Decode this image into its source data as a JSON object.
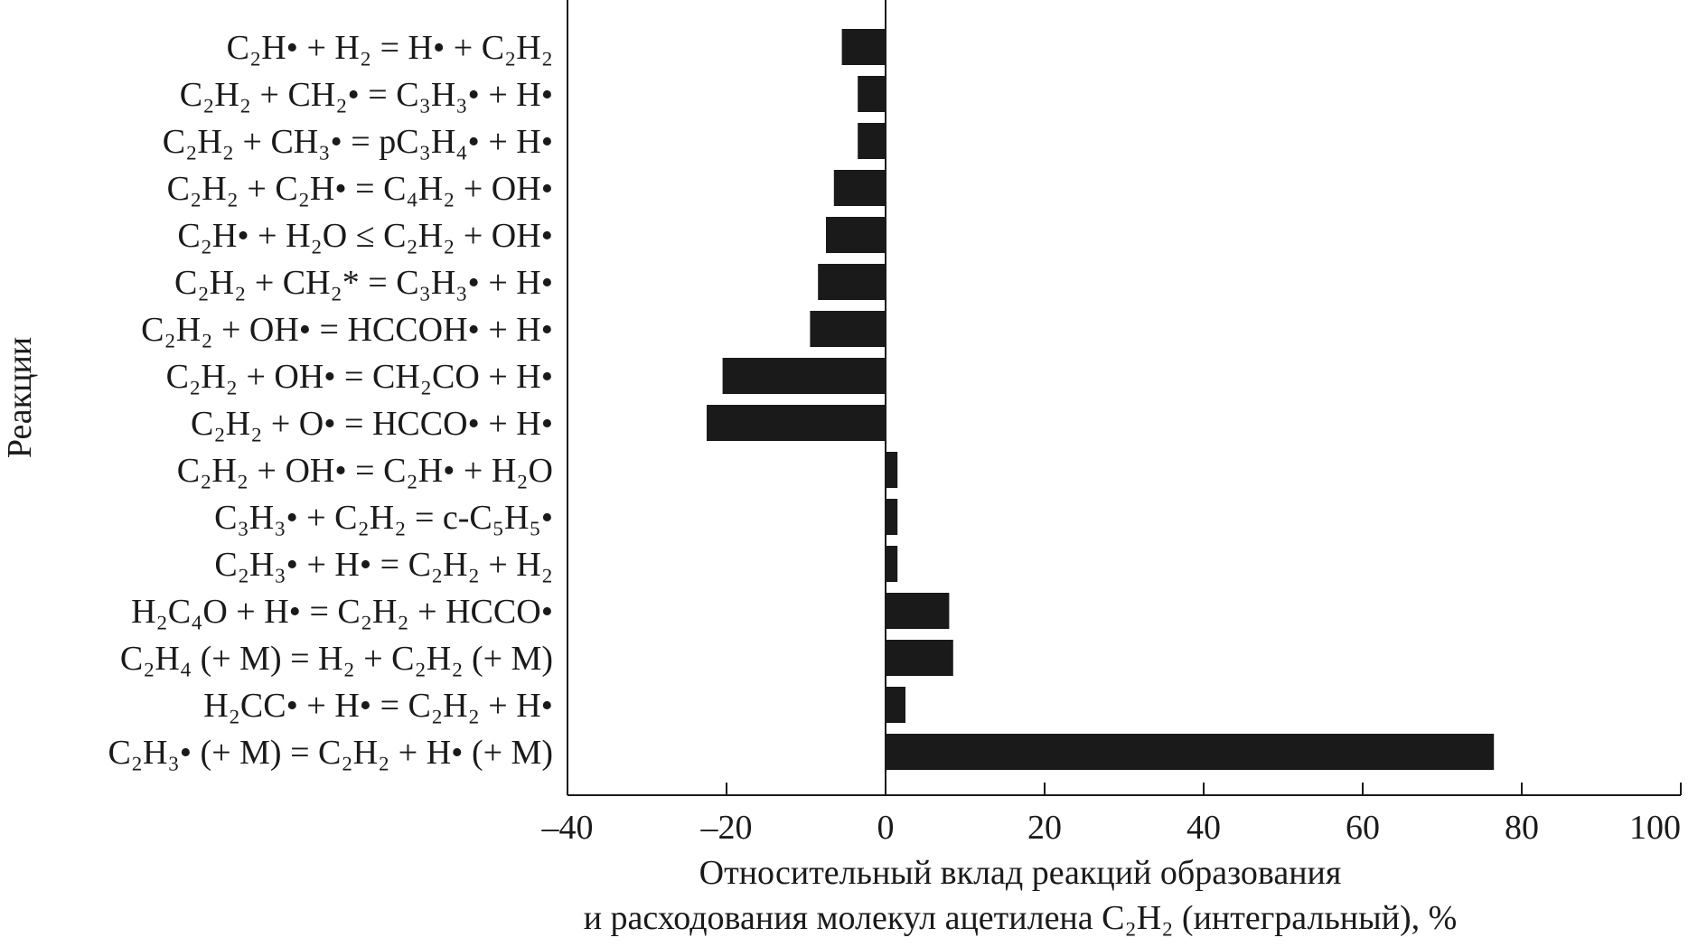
{
  "chart_data": {
    "type": "bar",
    "orientation": "horizontal",
    "ylabel": "Реакции",
    "xlabel_line1": "Относительный вклад реакций образования",
    "xlabel_line2": "и расходования молекул ацетилена C₂H₂ (интегральный), %",
    "xlim": [
      -40,
      100
    ],
    "xticks": [
      -40,
      -20,
      0,
      20,
      40,
      60,
      80,
      100
    ],
    "xtick_labels": [
      "–40",
      "–20",
      "0",
      "20",
      "40",
      "60",
      "80",
      "100"
    ],
    "grid": false,
    "bar_color": "#1a1a1a",
    "categories": [
      "C₂H• + H₂ = H• + C₂H₂",
      "C₂H₂ + CH₂• = C₃H₃• + H•",
      "C₂H₂ + CH₃• = pC₃H₄• + H•",
      "C₂H₂ + C₂H• = C₄H₂ + OH•",
      "C₂H• + H₂O ≤ C₂H₂ + OH•",
      "C₂H₂ + CH₂* = C₃H₃• + H•",
      "C₂H₂ + OH• = HCCOH• + H•",
      "C₂H₂ + OH• = CH₂CO + H•",
      "C₂H₂ + O• = HCCO• + H•",
      "C₂H₂ + OH• = C₂H• + H₂O",
      "C₃H₃• + C₂H₂ = c-C₅H₅•",
      "C₂H₃• + H• = C₂H₂ + H₂",
      "H₂C₄O + H• = C₂H₂ + HCCO•",
      "C₂H₄ (+ M) = H₂ + C₂H₂ (+ M)",
      "H₂CC• + H• = C₂H₂ + H•",
      "C₂H₃• (+ M) = C₂H₂ + H• (+ M)"
    ],
    "values": [
      -5.5,
      -3.5,
      -3.5,
      -6.5,
      -7.5,
      -8.5,
      -9.5,
      -20.5,
      -22.5,
      1.5,
      1.5,
      1.5,
      8.0,
      8.5,
      2.5,
      76.5
    ]
  }
}
